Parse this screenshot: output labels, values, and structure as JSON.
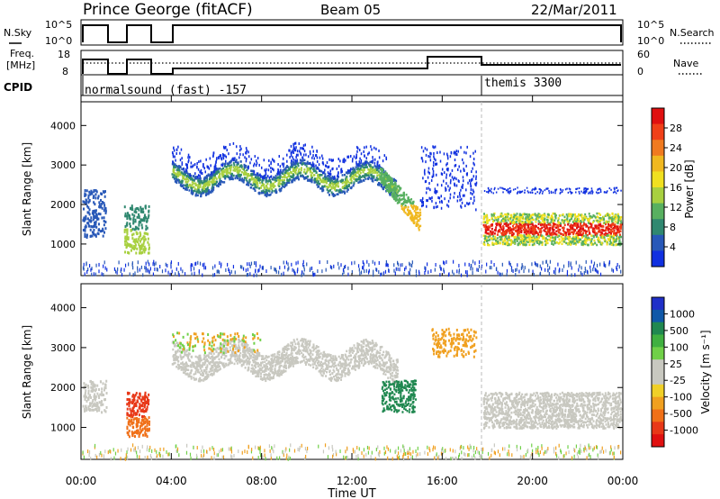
{
  "header": {
    "station": "Prince George (fitACF)",
    "beam": "Beam 05",
    "date": "22/Mar/2011"
  },
  "panels": {
    "nsky": {
      "left_label": "N.Sky",
      "right_label": "N.Search",
      "left_ticks": [
        "10^5",
        "10^0"
      ],
      "right_ticks": [
        "10^5",
        "10^0"
      ]
    },
    "freq": {
      "left_label_line1": "Freq.",
      "left_label_line2": "[MHz]",
      "right_label": "Nave",
      "left_ticks": [
        "18",
        "8"
      ],
      "right_ticks": [
        "60",
        "0"
      ]
    },
    "cpid": {
      "label": "CPID",
      "segments": [
        {
          "name": "normalsound (fast) -157",
          "start_hour": 0.0
        },
        {
          "name": "themis 3300",
          "start_hour": 17.75
        }
      ]
    }
  },
  "chart_data": [
    {
      "type": "heatmap",
      "name": "power",
      "ylabel": "Slant Range [km]",
      "ylim": [
        200,
        4600
      ],
      "yticks": [
        1000,
        2000,
        3000,
        4000
      ],
      "xlim": [
        0,
        24
      ],
      "colorbar": {
        "label": "Power [dB]",
        "ticks": [
          "28",
          "24",
          "20",
          "16",
          "12",
          "8",
          "4"
        ],
        "colors": [
          "#e01010",
          "#f04018",
          "#f07a20",
          "#f0b820",
          "#f0e020",
          "#a8d040",
          "#58b060",
          "#308870",
          "#2858b8",
          "#1030e0"
        ]
      }
    },
    {
      "type": "heatmap",
      "name": "velocity",
      "ylabel": "Slant Range [km]",
      "ylim": [
        200,
        4600
      ],
      "yticks": [
        1000,
        2000,
        3000,
        4000
      ],
      "xlim": [
        0,
        24
      ],
      "colorbar": {
        "label": "Velocity [m s⁻¹]",
        "ticks": [
          "1000",
          "500",
          "100",
          "25",
          "-25",
          "-100",
          "-500",
          "-1000"
        ],
        "colors": [
          "#2030c8",
          "#1058a8",
          "#208850",
          "#40b040",
          "#70d048",
          "#c8c8c0",
          "#c8c8c0",
          "#f0d028",
          "#f0a020",
          "#f07018",
          "#e83818",
          "#e01010"
        ]
      }
    }
  ],
  "xaxis": {
    "label": "Time UT",
    "ticks": [
      "00:00",
      "04:00",
      "08:00",
      "12:00",
      "16:00",
      "20:00",
      "00:00"
    ]
  }
}
